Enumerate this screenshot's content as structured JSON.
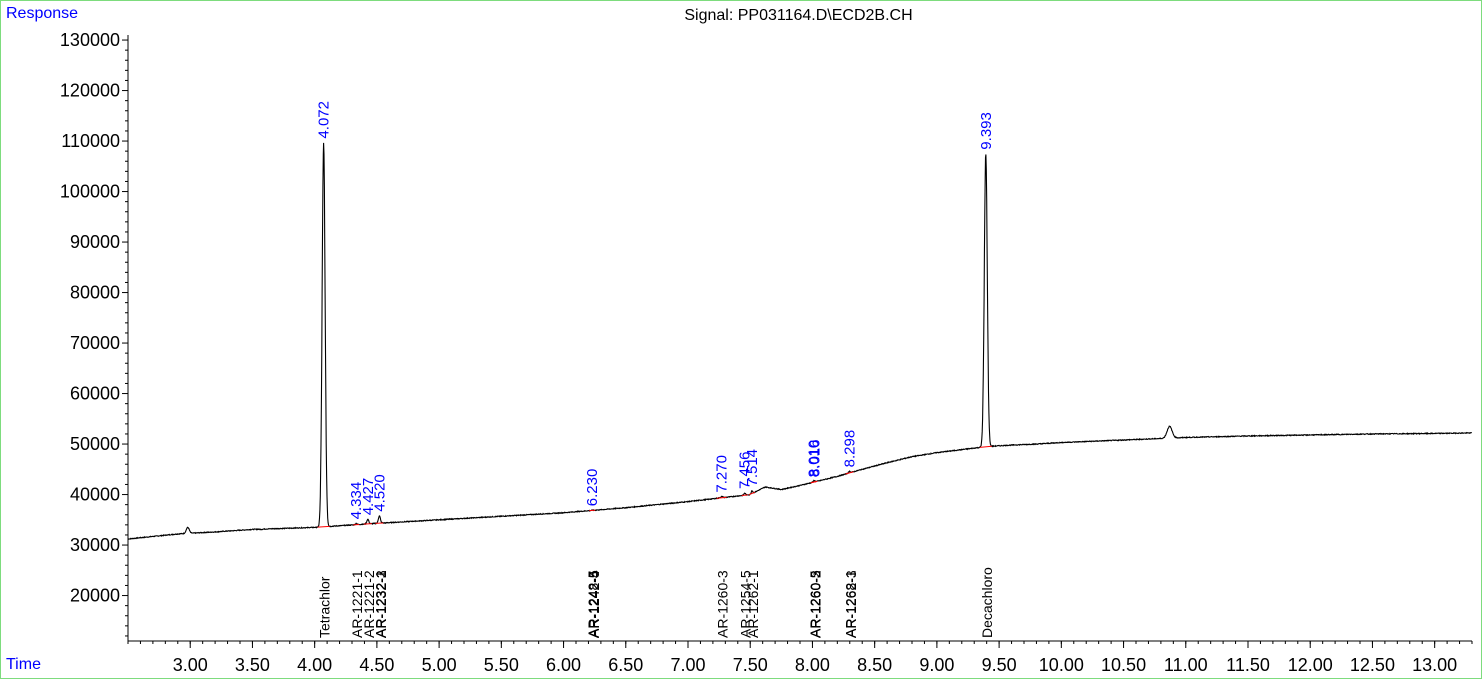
{
  "chart_data": {
    "type": "line",
    "title": "Signal: PP031164.D\\ECD2B.CH",
    "ylabel": "Response",
    "xlabel": "Time",
    "xlim": [
      2.5,
      13.3
    ],
    "ylim": [
      11000,
      131000
    ],
    "grid": false,
    "x_ticks": [
      "3.00",
      "3.50",
      "4.00",
      "4.50",
      "5.00",
      "5.50",
      "6.00",
      "6.50",
      "7.00",
      "7.50",
      "8.00",
      "8.50",
      "9.00",
      "9.50",
      "10.00",
      "10.50",
      "11.00",
      "11.50",
      "12.00",
      "12.50",
      "13.00"
    ],
    "y_ticks": [
      "20000",
      "30000",
      "40000",
      "50000",
      "60000",
      "70000",
      "80000",
      "90000",
      "100000",
      "110000",
      "120000",
      "130000"
    ],
    "baseline": [
      [
        2.5,
        31200
      ],
      [
        2.9,
        32200
      ],
      [
        3.2,
        32600
      ],
      [
        3.5,
        33100
      ],
      [
        4.0,
        33500
      ],
      [
        4.5,
        34300
      ],
      [
        5.0,
        35000
      ],
      [
        5.5,
        35700
      ],
      [
        6.0,
        36400
      ],
      [
        6.5,
        37400
      ],
      [
        7.0,
        38600
      ],
      [
        7.5,
        40000
      ],
      [
        7.62,
        41500
      ],
      [
        7.75,
        41000
      ],
      [
        7.9,
        41800
      ],
      [
        8.0,
        42400
      ],
      [
        8.2,
        43600
      ],
      [
        8.4,
        45000
      ],
      [
        8.6,
        46300
      ],
      [
        8.8,
        47500
      ],
      [
        9.0,
        48300
      ],
      [
        9.2,
        48900
      ],
      [
        9.4,
        49500
      ],
      [
        9.6,
        49800
      ],
      [
        9.8,
        50000
      ],
      [
        10.0,
        50300
      ],
      [
        10.5,
        50800
      ],
      [
        11.0,
        51300
      ],
      [
        11.5,
        51600
      ],
      [
        12.0,
        51800
      ],
      [
        12.5,
        52000
      ],
      [
        13.0,
        52100
      ],
      [
        13.3,
        52200
      ]
    ],
    "peaks": [
      {
        "rt": 2.98,
        "height": 33500,
        "width": 0.012,
        "label": ""
      },
      {
        "rt": 3.57,
        "height": 33100,
        "width": 0.01,
        "label": ""
      },
      {
        "rt": 4.072,
        "height": 109700,
        "width": 0.012,
        "label": "4.072"
      },
      {
        "rt": 4.334,
        "height": 34300,
        "width": 0.006,
        "label": "4.334"
      },
      {
        "rt": 4.427,
        "height": 35100,
        "width": 0.008,
        "label": "4.427"
      },
      {
        "rt": 4.52,
        "height": 35800,
        "width": 0.008,
        "label": "4.520"
      },
      {
        "rt": 6.23,
        "height": 36900,
        "width": 0.006,
        "label": "6.230"
      },
      {
        "rt": 7.27,
        "height": 39600,
        "width": 0.01,
        "label": "7.270"
      },
      {
        "rt": 7.456,
        "height": 40300,
        "width": 0.006,
        "label": "7.456"
      },
      {
        "rt": 7.514,
        "height": 40800,
        "width": 0.006,
        "label": "7.514"
      },
      {
        "rt": 8.01,
        "height": 42600,
        "width": 0.006,
        "label": "8.010"
      },
      {
        "rt": 8.016,
        "height": 42700,
        "width": 0.006,
        "label": "8.016"
      },
      {
        "rt": 8.298,
        "height": 44600,
        "width": 0.008,
        "label": "8.298"
      },
      {
        "rt": 9.393,
        "height": 107500,
        "width": 0.012,
        "label": "9.393"
      },
      {
        "rt": 10.87,
        "height": 53500,
        "width": 0.02,
        "label": ""
      }
    ],
    "compounds": [
      {
        "rt": 4.072,
        "names": [
          "Tetrachlor"
        ]
      },
      {
        "rt": 4.334,
        "names": [
          "AR-1221-1"
        ]
      },
      {
        "rt": 4.427,
        "names": [
          "AR-1221-2"
        ]
      },
      {
        "rt": 4.52,
        "names": [
          "AR-1232-1",
          "AR-1232-2",
          "AR-1232-3"
        ]
      },
      {
        "rt": 6.23,
        "names": [
          "AR-1248-5",
          "AR-1242-5",
          "AR-1242-4"
        ]
      },
      {
        "rt": 7.27,
        "names": [
          "AR-1260-3"
        ]
      },
      {
        "rt": 7.456,
        "names": [
          "AR-1254-5"
        ]
      },
      {
        "rt": 7.514,
        "names": [
          "AR-1262-1"
        ]
      },
      {
        "rt": 8.013,
        "names": [
          "AR-1260-5",
          "AR-1260-2",
          "AR-1260-3"
        ]
      },
      {
        "rt": 8.298,
        "names": [
          "AR-1268-1",
          "AR-1262-3"
        ]
      },
      {
        "rt": 9.393,
        "names": [
          "Decachloro"
        ]
      }
    ],
    "colors": {
      "signal": "#000000",
      "retention_label": "#0000ff",
      "compound_label": "#000000",
      "integration": "#ff0000",
      "frame": "#7ddc7d",
      "axis": "#000000"
    }
  }
}
